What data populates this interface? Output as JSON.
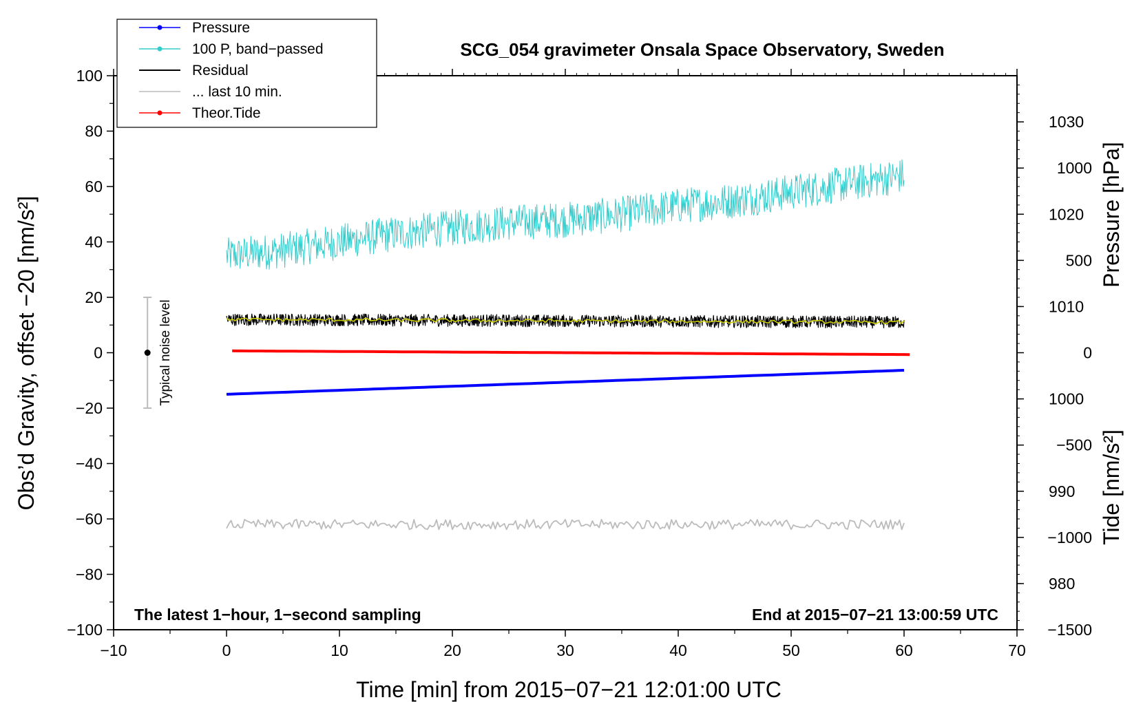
{
  "chart_data": {
    "type": "line",
    "title": "SCG_054 gravimeter Onsala Space Observatory, Sweden",
    "xlabel": "Time [min] from 2015−07−21 12:01:00 UTC",
    "ylabel_left": "Obs’d Gravity, offset −20 [nm/s²]",
    "ylabel_pressure": "Pressure [hPa]",
    "ylabel_tide": "Tide [nm/s²]",
    "xlim": [
      -10,
      70
    ],
    "ylim": [
      -100,
      100
    ],
    "pressure_lim": [
      975,
      1035
    ],
    "tide_lim": [
      -1500,
      1500
    ],
    "x_ticks": [
      -10,
      0,
      10,
      20,
      30,
      40,
      50,
      60,
      70
    ],
    "x_tick_labels": [
      "−10",
      "0",
      "10",
      "20",
      "30",
      "40",
      "50",
      "60",
      "70"
    ],
    "y_ticks": [
      -100,
      -80,
      -60,
      -40,
      -20,
      0,
      20,
      40,
      60,
      80,
      100
    ],
    "y_tick_labels": [
      "−100",
      "−80",
      "−60",
      "−40",
      "−20",
      "0",
      "20",
      "40",
      "60",
      "80",
      "100"
    ],
    "pressure_ticks": [
      980,
      990,
      1000,
      1010,
      1020,
      1030
    ],
    "pressure_tick_labels": [
      "980",
      "990",
      "1000",
      "1010",
      "1020",
      "1030"
    ],
    "tide_ticks": [
      -1500,
      -1000,
      -500,
      0,
      500,
      1000
    ],
    "tide_tick_labels": [
      "−1500",
      "−1000",
      "−500",
      "0",
      "500",
      "1000"
    ],
    "legend": {
      "placement": "top-left",
      "entries": [
        {
          "label": "Pressure",
          "color": "#0000ff",
          "marker": true
        },
        {
          "label": "100 P, band−passed",
          "color": "#33cccc",
          "marker": true
        },
        {
          "label": "Residual",
          "color": "#000000",
          "marker": false
        },
        {
          "label": "... last 10 min.",
          "color": "#bbbbbb",
          "marker": false
        },
        {
          "label": "Theor.Tide",
          "color": "#ff0000",
          "marker": true
        }
      ]
    },
    "series": [
      {
        "name": "Pressure",
        "axis": "pressure",
        "color": "#0000ff",
        "x": [
          0,
          60
        ],
        "y": [
          1000.5,
          1003.1
        ]
      },
      {
        "name": "100 P, band−passed",
        "axis": "left",
        "color": "#33cccc",
        "x": [
          0,
          5,
          10,
          15,
          20,
          25,
          30,
          35,
          40,
          45,
          50,
          55,
          60
        ],
        "y": [
          35,
          37,
          40,
          43,
          45,
          47,
          48,
          50,
          53,
          55,
          58,
          61,
          64
        ]
      },
      {
        "name": "Residual",
        "axis": "left",
        "color": "#000000",
        "x": [
          0,
          60
        ],
        "y": [
          12,
          11
        ]
      },
      {
        "name": "... last 10 min.",
        "axis": "left",
        "color": "#bbbbbb",
        "x": [
          0,
          60
        ],
        "y": [
          -62,
          -62
        ]
      },
      {
        "name": "Theor.Tide",
        "axis": "tide",
        "color": "#ff0000",
        "x": [
          0.5,
          60.5
        ],
        "y": [
          10,
          -10
        ]
      }
    ],
    "noise_bar": {
      "label": "Typical noise level",
      "x": -7,
      "y": 0,
      "low": -20,
      "high": 20
    },
    "annotations": {
      "left": "The latest 1−hour, 1−second sampling",
      "right": "End at 2015−07−21 13:00:59 UTC"
    },
    "grid": false
  }
}
